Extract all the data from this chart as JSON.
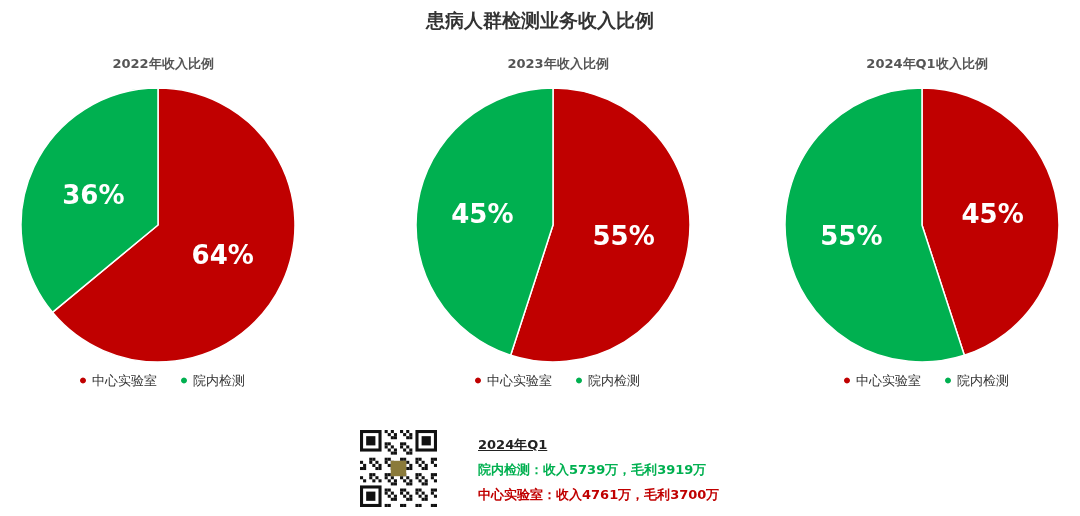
{
  "chart_data": [
    {
      "type": "pie",
      "subtitle": "2022年收入比例",
      "categories": [
        "中心实验室",
        "院内检测"
      ],
      "values": [
        64,
        36
      ],
      "value_labels": [
        "64%",
        "36%"
      ],
      "colors": [
        "#c00000",
        "#00b050"
      ],
      "legend": "bottom"
    },
    {
      "type": "pie",
      "title": "患病人群检测业务收入比例",
      "subtitle": "2023年收入比例",
      "categories": [
        "中心实验室",
        "院内检测"
      ],
      "values": [
        55,
        45
      ],
      "value_labels": [
        "55%",
        "45%"
      ],
      "colors": [
        "#c00000",
        "#00b050"
      ],
      "legend": "bottom",
      "annotations": [
        "2024年Q1",
        "院内检测：收入5739万，毛利3919万",
        "中心实验室：收入4761万，毛利3700万"
      ]
    },
    {
      "type": "pie",
      "subtitle": "2024年Q1收入比例",
      "categories": [
        "中心实验室",
        "院内检测"
      ],
      "values": [
        45,
        55
      ],
      "value_labels": [
        "45%",
        "55%"
      ],
      "colors": [
        "#c00000",
        "#00b050"
      ],
      "legend": "bottom"
    }
  ]
}
